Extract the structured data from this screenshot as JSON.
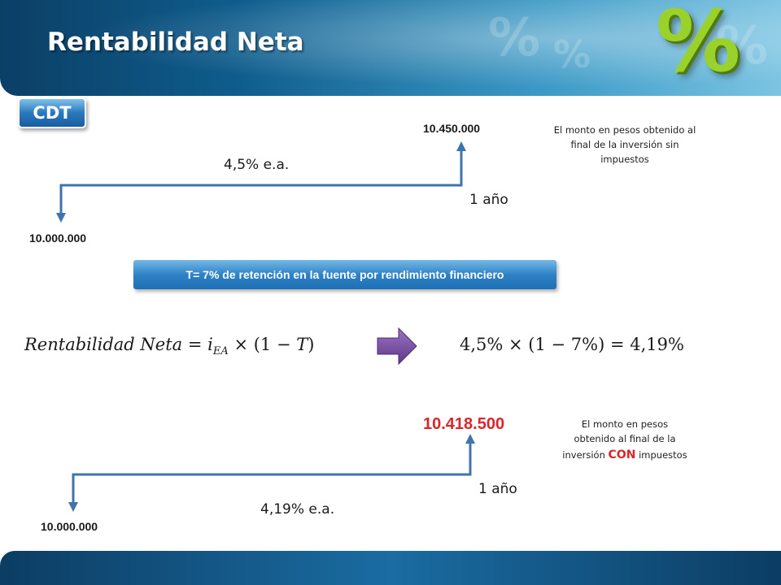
{
  "header": {
    "title": "Rentabilidad Neta"
  },
  "badge": {
    "label": "CDT"
  },
  "top_diagram": {
    "final_amount": "10.450.000",
    "rate": "4,5% e.a.",
    "period": "1 año",
    "initial_amount": "10.000.000",
    "note": "El monto en pesos obtenido al final de la inversión sin impuestos"
  },
  "retention_banner": {
    "text": "T= 7% de retención en la fuente por rendimiento financiero"
  },
  "formula": {
    "left_lhs": "Rentabilidad Neta",
    "left_rhs_i": "i",
    "left_rhs_sub": "EA",
    "left_rhs_rest": "× (1 − ",
    "left_rhs_T": "T",
    "left_rhs_close": ")",
    "right": "4,5% × (1 − 7%) = 4,19%",
    "arrow_color": "#7a4fa0"
  },
  "bottom_diagram": {
    "final_amount": "10.418.500",
    "period": "1 año",
    "rate": "4,19% e.a.",
    "initial_amount": "10.000.000",
    "note_line1": "El monto en pesos",
    "note_line2": "obtenido al final de la",
    "note_line3_pre": "inversión ",
    "note_line3_emph": "CON",
    "note_line3_post": " impuestos"
  },
  "colors": {
    "arrow": "#3f73ad",
    "red_amount": "#d9262a",
    "accent_green": "#9bd12b"
  }
}
